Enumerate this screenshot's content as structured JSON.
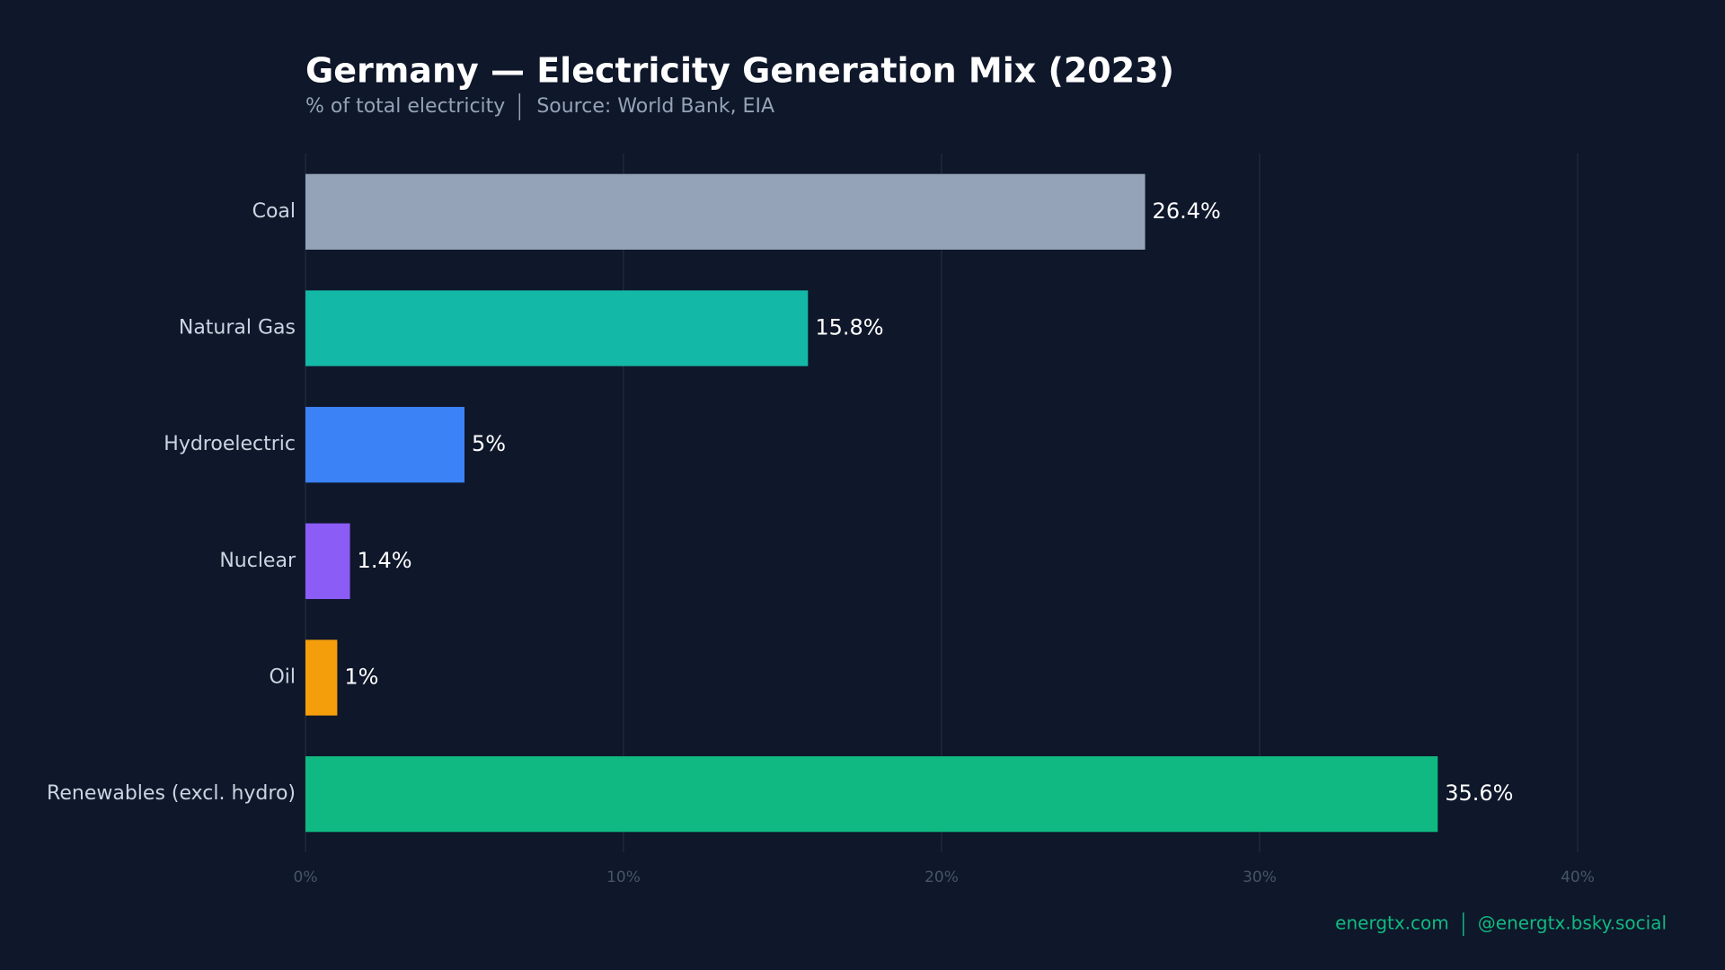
{
  "chart_data": {
    "type": "bar",
    "orientation": "horizontal",
    "title": "Germany — Electricity Generation Mix (2023)",
    "subtitle": "% of total electricity",
    "source": "Source: World Bank, EIA",
    "categories": [
      "Coal",
      "Natural Gas",
      "Hydroelectric",
      "Nuclear",
      "Oil",
      "Renewables (excl. hydro)"
    ],
    "values": [
      26.4,
      15.8,
      5,
      1.4,
      1,
      35.6
    ],
    "value_labels": [
      "26.4%",
      "15.8%",
      "5%",
      "1.4%",
      "1%",
      "35.6%"
    ],
    "colors": [
      "#94a3b8",
      "#14b8a6",
      "#3b82f6",
      "#8b5cf6",
      "#f59e0b",
      "#10b981"
    ],
    "xlim": [
      0,
      40
    ],
    "xticks": [
      {
        "value": 0,
        "label": "0%"
      },
      {
        "value": 10,
        "label": "10%"
      },
      {
        "value": 20,
        "label": "20%"
      },
      {
        "value": 30,
        "label": "30%"
      },
      {
        "value": 40,
        "label": "40%"
      }
    ],
    "grid": true,
    "footer": [
      "energtx.com",
      "@energtx.bsky.social"
    ]
  }
}
